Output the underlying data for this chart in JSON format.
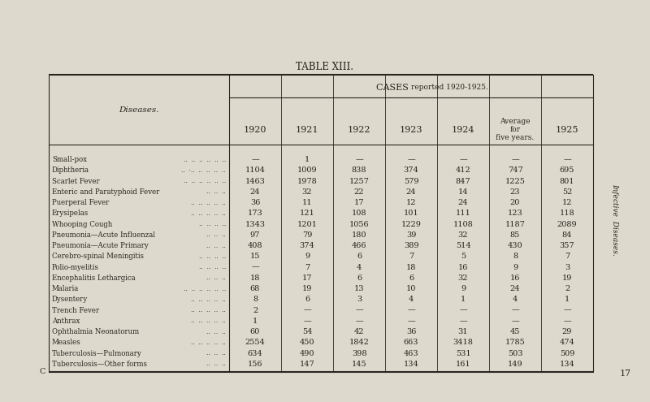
{
  "title": "TABLE XIII.",
  "col_header_main_1": "CASES ",
  "col_header_main_2": "reported",
  "col_header_main_3": " 1920-1925.",
  "col_header_diseases": "Diseases.",
  "col_headers": [
    "1920",
    "1921",
    "1922",
    "1923",
    "1924",
    "Average\nfor\nfive years.",
    "1925"
  ],
  "diseases": [
    "Small-pox",
    "Diphtheria",
    "Scarlet Fever",
    "Enteric and Paratyphoid Fever",
    "Puerperal Fever",
    "Erysipelas",
    "Whooping Cough",
    "Pneumonia—Acute Influenzal",
    "Pneumonia—Acute Primary",
    "Cerebro-spinal Meningitis",
    "Polio-myelitis",
    "Encephalitis Lethargica",
    "Malaria",
    "Dysentery",
    "Trench Fever",
    "Anthrax",
    "Ophthalmia Neonatorum",
    "Measles",
    "Tuberculosis—Pulmonary",
    "Tuberculosis—Other forms"
  ],
  "disease_dots": [
    "..  ..  ..  ..  ..  ..",
    "..  ·..  ..  ..  ..  ..",
    "..  ..  ..  ..  ..  ..",
    "..  ..  ..",
    "..  ..  ..  ..  ..",
    "..  ..  ..  ..  ..",
    "..  ..  ..  ..",
    "..  ..  ..",
    "..  ..  ..",
    "..  ..  ..  ..",
    "..  ..  ..  ..",
    "..  ..  ..",
    "..  ..  ..  ..  ..  ..",
    "..  ..  ..  ..  ..",
    "..  ..  ..  ..  ..",
    "..  ..  ..  ..  ..",
    "..  ..  ..",
    "..  ..  ..  ..  ..",
    "..  ..  ..",
    "..  ..  .."
  ],
  "data": [
    [
      "—",
      "1",
      "—",
      "—",
      "—",
      "—",
      "—"
    ],
    [
      "1104",
      "1009",
      "838",
      "374",
      "412",
      "747",
      "695"
    ],
    [
      "1463",
      "1978",
      "1257",
      "579",
      "847",
      "1225",
      "801"
    ],
    [
      "24",
      "32",
      "22",
      "24",
      "14",
      "23",
      "52"
    ],
    [
      "36",
      "11",
      "17",
      "12",
      "24",
      "20",
      "12"
    ],
    [
      "173",
      "121",
      "108",
      "101",
      "111",
      "123",
      "118"
    ],
    [
      "1343",
      "1201",
      "1056",
      "1229",
      "1108",
      "1187",
      "2089"
    ],
    [
      "97",
      "79",
      "180",
      "39",
      "32",
      "85",
      "84"
    ],
    [
      "408",
      "374",
      "466",
      "389",
      "514",
      "430",
      "357"
    ],
    [
      "15",
      "9",
      "6",
      "7",
      "5",
      "8",
      "7"
    ],
    [
      "—",
      "7",
      "4",
      "18",
      "16",
      "9",
      "3"
    ],
    [
      "18",
      "17",
      "6",
      "6",
      "32",
      "16",
      "19"
    ],
    [
      "68",
      "19",
      "13",
      "10",
      "9",
      "24",
      "2"
    ],
    [
      "8",
      "6",
      "3",
      "4",
      "1",
      "4",
      "1"
    ],
    [
      "2",
      "—",
      "—",
      "—",
      "—",
      "—",
      "—"
    ],
    [
      "1",
      "—",
      "—",
      "—",
      "—",
      "—",
      "—"
    ],
    [
      "60",
      "54",
      "42",
      "36",
      "31",
      "45",
      "29"
    ],
    [
      "2554",
      "450",
      "1842",
      "663",
      "3418",
      "1785",
      "474"
    ],
    [
      "634",
      "490",
      "398",
      "463",
      "531",
      "503",
      "509"
    ],
    [
      "156",
      "147",
      "145",
      "134",
      "161",
      "149",
      "134"
    ]
  ],
  "bg_color": "#ddd9cc",
  "text_color": "#2a2520",
  "side_text": "Infective  Diseases.",
  "page_number": "17",
  "page_letter": "C"
}
